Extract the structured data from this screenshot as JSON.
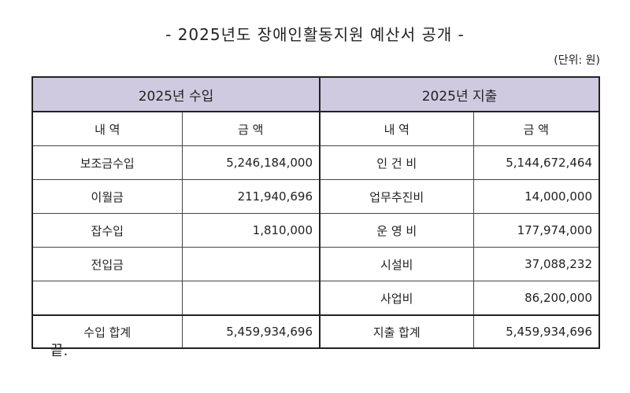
{
  "title": "- 2025년도 장애인활동지원 예산서 공개 -",
  "unit": "(단위: 원)",
  "table": {
    "income_header": "2025년 수입",
    "expense_header": "2025년 지출",
    "col_item": "내  역",
    "col_amount": "금  액",
    "rows": [
      {
        "income_item": "보조금수입",
        "income_amount": "5,246,184,000",
        "expense_item": "인 건 비",
        "expense_amount": "5,144,672,464"
      },
      {
        "income_item": "이월금",
        "income_amount": "211,940,696",
        "expense_item": "업무추진비",
        "expense_amount": "14,000,000"
      },
      {
        "income_item": "잡수입",
        "income_amount": "1,810,000",
        "expense_item": "운 영 비",
        "expense_amount": "177,974,000"
      },
      {
        "income_item": "전입금",
        "income_amount": "",
        "expense_item": "시설비",
        "expense_amount": "37,088,232"
      },
      {
        "income_item": "",
        "income_amount": "",
        "expense_item": "사업비",
        "expense_amount": "86,200,000"
      }
    ],
    "income_total_label": "수입 합계",
    "income_total": "5,459,934,696",
    "expense_total_label": "지출 합계",
    "expense_total": "5,459,934,696"
  },
  "end_mark": "끝."
}
